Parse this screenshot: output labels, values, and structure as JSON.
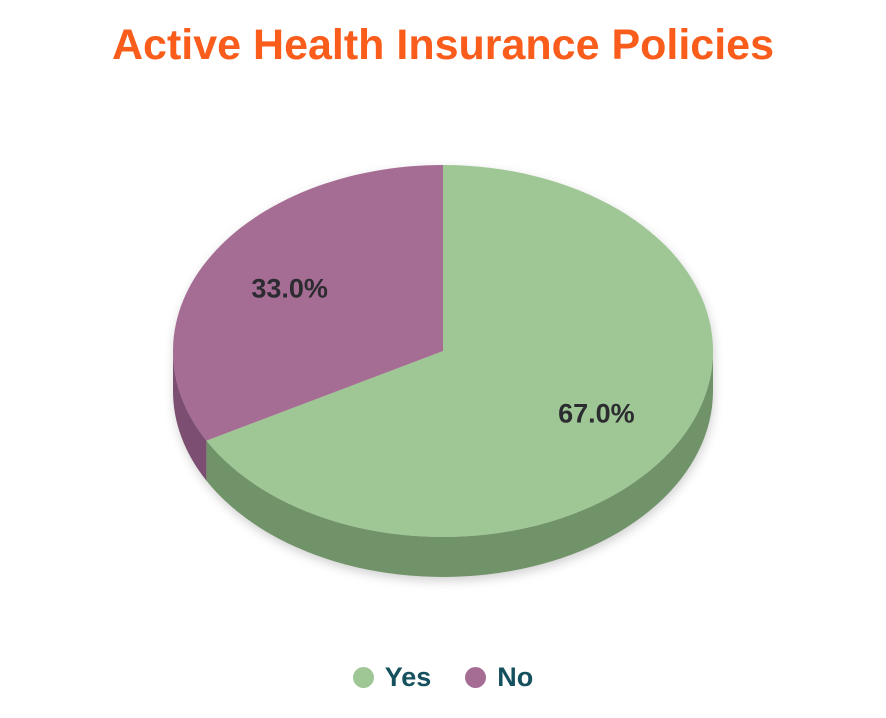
{
  "chart_data": {
    "type": "pie",
    "title": "Active Health Insurance Policies",
    "effect": "3d",
    "start_angle_deg": 0,
    "direction": "clockwise",
    "legend_position": "bottom",
    "background": "#FFFFFF",
    "title_color": "#F95C1B",
    "label_color": "#2B2B30",
    "legend_text_color": "#14505E",
    "categories": [
      "Yes",
      "No"
    ],
    "values": [
      67.0,
      33.0
    ],
    "slices": [
      {
        "label": "Yes",
        "value": 67.0,
        "display": "67.0%",
        "color": "#9FC795",
        "side_color": "#719369"
      },
      {
        "label": "No",
        "value": 33.0,
        "display": "33.0%",
        "color": "#A66D94",
        "side_color": "#7C4E72"
      }
    ]
  }
}
